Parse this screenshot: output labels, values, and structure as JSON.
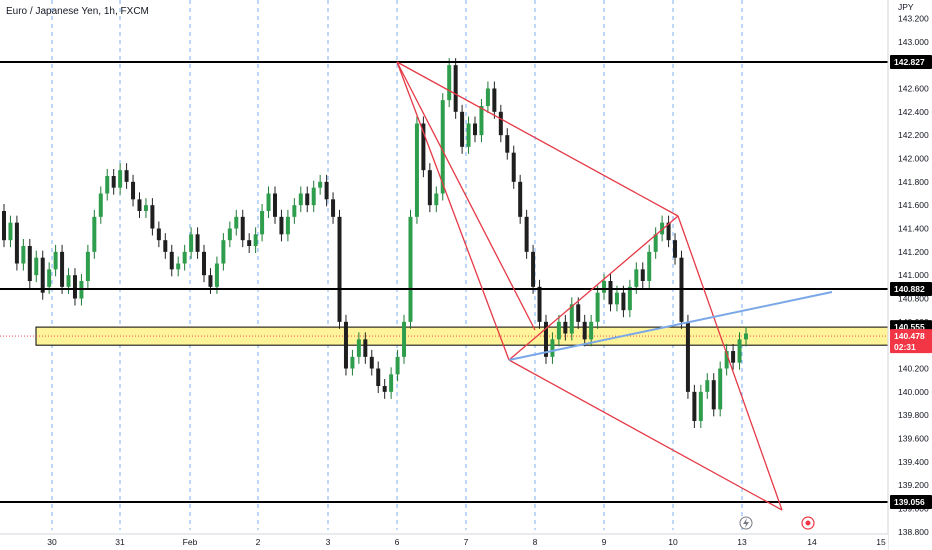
{
  "chart_title": "Euro / Japanese Yen, 1h, FXCM",
  "currency_label": "JPY",
  "chart_data": {
    "type": "candlestick",
    "symbol": "Euro / Japanese Yen",
    "interval": "1h",
    "source": "FXCM",
    "ylim": [
      138.8,
      143.3
    ],
    "y_ticks": [
      "143.200",
      "143.000",
      "142.800",
      "142.600",
      "142.400",
      "142.200",
      "142.000",
      "141.800",
      "141.600",
      "141.400",
      "141.200",
      "141.000",
      "140.800",
      "140.600",
      "140.400",
      "140.200",
      "140.000",
      "139.800",
      "139.600",
      "139.400",
      "139.200",
      "139.000",
      "138.800"
    ],
    "x_ticks": [
      "30",
      "31",
      "Feb",
      "2",
      "3",
      "6",
      "7",
      "8",
      "9",
      "10",
      "13",
      "14",
      "15"
    ],
    "horizontal_levels": [
      {
        "price": 142.827,
        "label": "142.827"
      },
      {
        "price": 140.882,
        "label": "140.882"
      },
      {
        "price": 139.056,
        "label": "139.056"
      }
    ],
    "current_price": {
      "price": 140.478,
      "label": "140.478",
      "countdown": "02:31"
    },
    "zone": {
      "low": 140.4,
      "high": 140.555,
      "label": "140.555"
    },
    "drawings": [
      "red triangle pattern lines",
      "blue trendline"
    ],
    "candles_approx": [
      [
        141.55,
        141.3
      ],
      [
        141.3,
        141.45
      ],
      [
        141.45,
        141.1
      ],
      [
        141.1,
        141.25
      ],
      [
        141.25,
        140.95
      ],
      [
        141.0,
        141.15
      ],
      [
        141.15,
        140.85
      ],
      [
        140.9,
        141.05
      ],
      [
        141.05,
        141.2
      ],
      [
        141.2,
        140.9
      ],
      [
        140.9,
        141.0
      ],
      [
        141.0,
        140.8
      ],
      [
        140.8,
        140.95
      ],
      [
        140.95,
        141.2
      ],
      [
        141.2,
        141.5
      ],
      [
        141.5,
        141.7
      ],
      [
        141.7,
        141.85
      ],
      [
        141.85,
        141.75
      ],
      [
        141.75,
        141.9
      ],
      [
        141.9,
        141.8
      ],
      [
        141.8,
        141.65
      ],
      [
        141.65,
        141.55
      ],
      [
        141.55,
        141.6
      ],
      [
        141.6,
        141.4
      ],
      [
        141.4,
        141.3
      ],
      [
        141.3,
        141.2
      ],
      [
        141.2,
        141.05
      ],
      [
        141.05,
        141.1
      ],
      [
        141.1,
        141.2
      ],
      [
        141.2,
        141.35
      ],
      [
        141.35,
        141.2
      ],
      [
        141.2,
        141.0
      ],
      [
        141.0,
        140.9
      ],
      [
        140.9,
        141.1
      ],
      [
        141.1,
        141.3
      ],
      [
        141.3,
        141.4
      ],
      [
        141.4,
        141.5
      ],
      [
        141.5,
        141.3
      ],
      [
        141.3,
        141.25
      ],
      [
        141.25,
        141.35
      ],
      [
        141.35,
        141.55
      ],
      [
        141.55,
        141.7
      ],
      [
        141.7,
        141.5
      ],
      [
        141.5,
        141.35
      ],
      [
        141.35,
        141.5
      ],
      [
        141.5,
        141.6
      ],
      [
        141.6,
        141.7
      ],
      [
        141.7,
        141.6
      ],
      [
        141.6,
        141.75
      ],
      [
        141.75,
        141.8
      ],
      [
        141.8,
        141.65
      ],
      [
        141.65,
        141.5
      ],
      [
        141.5,
        140.6
      ],
      [
        140.6,
        140.2
      ],
      [
        140.2,
        140.3
      ],
      [
        140.3,
        140.45
      ],
      [
        140.45,
        140.3
      ],
      [
        140.3,
        140.2
      ],
      [
        140.2,
        140.05
      ],
      [
        140.05,
        140.0
      ],
      [
        140.0,
        140.15
      ],
      [
        140.15,
        140.3
      ],
      [
        140.3,
        140.6
      ],
      [
        140.6,
        141.5
      ],
      [
        141.5,
        142.3
      ],
      [
        142.3,
        141.9
      ],
      [
        141.9,
        141.6
      ],
      [
        141.6,
        141.7
      ],
      [
        141.7,
        142.5
      ],
      [
        142.5,
        142.8
      ],
      [
        142.8,
        142.4
      ],
      [
        142.4,
        142.1
      ],
      [
        142.1,
        142.3
      ],
      [
        142.3,
        142.2
      ],
      [
        142.2,
        142.45
      ],
      [
        142.45,
        142.6
      ],
      [
        142.6,
        142.4
      ],
      [
        142.4,
        142.2
      ],
      [
        142.2,
        142.05
      ],
      [
        142.05,
        141.8
      ],
      [
        141.8,
        141.5
      ],
      [
        141.5,
        141.2
      ],
      [
        141.2,
        140.9
      ],
      [
        140.9,
        140.6
      ],
      [
        140.6,
        140.3
      ],
      [
        140.3,
        140.45
      ],
      [
        140.45,
        140.6
      ],
      [
        140.6,
        140.5
      ],
      [
        140.5,
        140.75
      ],
      [
        140.75,
        140.6
      ],
      [
        140.6,
        140.45
      ],
      [
        140.45,
        140.6
      ],
      [
        140.6,
        140.85
      ],
      [
        140.85,
        140.95
      ],
      [
        140.95,
        140.75
      ],
      [
        140.75,
        140.85
      ],
      [
        140.85,
        140.7
      ],
      [
        140.7,
        140.9
      ],
      [
        140.9,
        141.05
      ],
      [
        141.05,
        140.95
      ],
      [
        140.95,
        141.2
      ],
      [
        141.2,
        141.35
      ],
      [
        141.35,
        141.45
      ],
      [
        141.45,
        141.3
      ],
      [
        141.3,
        141.15
      ],
      [
        141.15,
        140.6
      ],
      [
        140.6,
        140.0
      ],
      [
        140.0,
        139.75
      ],
      [
        139.75,
        140.0
      ],
      [
        140.0,
        140.1
      ],
      [
        140.1,
        139.85
      ],
      [
        139.85,
        140.2
      ],
      [
        140.2,
        140.35
      ],
      [
        140.35,
        140.25
      ],
      [
        140.25,
        140.45
      ],
      [
        140.45,
        140.5
      ]
    ]
  }
}
